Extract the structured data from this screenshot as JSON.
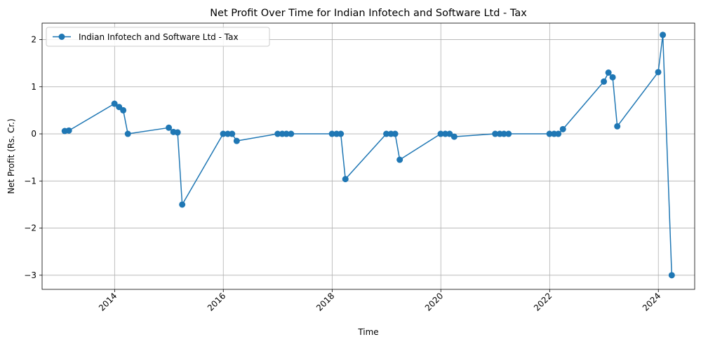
{
  "chart_data": {
    "type": "line",
    "title": "Net Profit Over Time for Indian Infotech and Software Ltd - Tax",
    "xlabel": "Time",
    "ylabel": "Net Profit (Rs. Cr.)",
    "xlim": [
      "2012-09-01",
      "2024-09-01"
    ],
    "ylim": [
      -3.3,
      2.35
    ],
    "x_ticks": [
      "2014",
      "2016",
      "2018",
      "2020",
      "2022",
      "2024"
    ],
    "y_ticks": [
      2,
      1,
      0,
      -1,
      -2,
      -3
    ],
    "y_tick_labels": [
      "2",
      "1",
      "0",
      "−1",
      "−2",
      "−3"
    ],
    "grid": true,
    "legend_position": "top-left",
    "series": [
      {
        "name": "Indian Infotech and Software Ltd - Tax",
        "color": "#1f77b4",
        "marker": "circle",
        "points": [
          {
            "x": "2013-01-31",
            "y": 0.06
          },
          {
            "x": "2013-02-28",
            "y": 0.07
          },
          {
            "x": "2013-12-31",
            "y": 0.64
          },
          {
            "x": "2014-01-31",
            "y": 0.57
          },
          {
            "x": "2014-02-28",
            "y": 0.5
          },
          {
            "x": "2014-03-31",
            "y": 0.0
          },
          {
            "x": "2014-12-31",
            "y": 0.13
          },
          {
            "x": "2015-01-31",
            "y": 0.04
          },
          {
            "x": "2015-02-28",
            "y": 0.03
          },
          {
            "x": "2015-03-31",
            "y": -1.5
          },
          {
            "x": "2015-12-31",
            "y": 0.0
          },
          {
            "x": "2016-01-31",
            "y": 0.0
          },
          {
            "x": "2016-02-29",
            "y": 0.0
          },
          {
            "x": "2016-03-31",
            "y": -0.15
          },
          {
            "x": "2016-12-31",
            "y": 0.0
          },
          {
            "x": "2017-01-31",
            "y": 0.0
          },
          {
            "x": "2017-02-28",
            "y": 0.0
          },
          {
            "x": "2017-03-31",
            "y": 0.0
          },
          {
            "x": "2017-12-31",
            "y": 0.0
          },
          {
            "x": "2018-01-31",
            "y": 0.0
          },
          {
            "x": "2018-02-28",
            "y": 0.0
          },
          {
            "x": "2018-03-31",
            "y": -0.96
          },
          {
            "x": "2018-12-31",
            "y": 0.0
          },
          {
            "x": "2019-01-31",
            "y": 0.0
          },
          {
            "x": "2019-02-28",
            "y": 0.0
          },
          {
            "x": "2019-03-31",
            "y": -0.55
          },
          {
            "x": "2019-12-31",
            "y": 0.0
          },
          {
            "x": "2020-01-31",
            "y": 0.0
          },
          {
            "x": "2020-02-29",
            "y": 0.0
          },
          {
            "x": "2020-03-31",
            "y": -0.06
          },
          {
            "x": "2020-12-31",
            "y": 0.0
          },
          {
            "x": "2021-01-31",
            "y": 0.0
          },
          {
            "x": "2021-02-28",
            "y": 0.0
          },
          {
            "x": "2021-03-31",
            "y": 0.0
          },
          {
            "x": "2021-12-31",
            "y": 0.0
          },
          {
            "x": "2022-01-31",
            "y": 0.0
          },
          {
            "x": "2022-02-28",
            "y": 0.0
          },
          {
            "x": "2022-03-31",
            "y": 0.1
          },
          {
            "x": "2022-12-31",
            "y": 1.11
          },
          {
            "x": "2023-01-31",
            "y": 1.3
          },
          {
            "x": "2023-02-28",
            "y": 1.2
          },
          {
            "x": "2023-03-31",
            "y": 0.16
          },
          {
            "x": "2023-12-31",
            "y": 1.31
          },
          {
            "x": "2024-01-31",
            "y": 2.1
          },
          {
            "x": "2024-03-31",
            "y": -3.0
          }
        ]
      }
    ]
  }
}
